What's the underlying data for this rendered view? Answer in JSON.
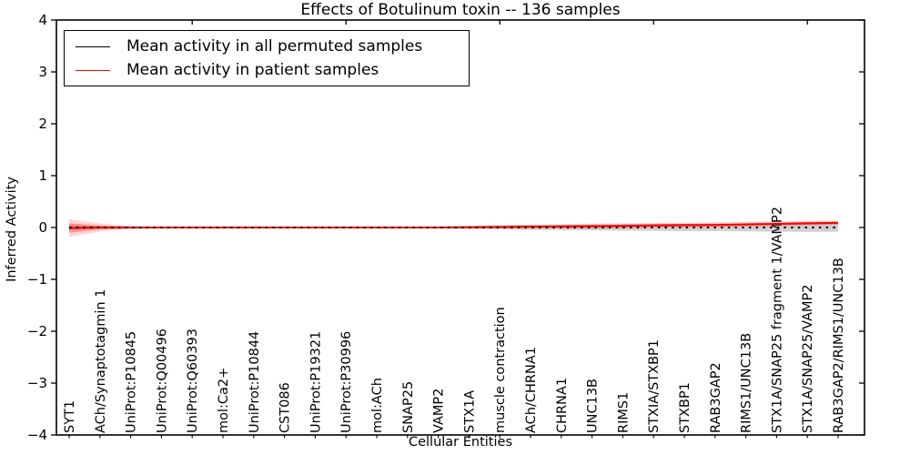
{
  "chart_data": {
    "type": "line",
    "title": "Effects of Botulinum toxin -- 136 samples",
    "xlabel": "Cellular Entities",
    "ylabel": "Inferred Activity",
    "ylim": [
      -4,
      4
    ],
    "yticks": [
      4,
      3,
      2,
      1,
      0,
      -1,
      -2,
      -3,
      -4
    ],
    "grid": false,
    "legend_position": "upper left",
    "categories": [
      "SYT1",
      "ACh/Synaptotagmin 1",
      "UniProt:P10845",
      "UniProt:Q00496",
      "UniProt:Q60393",
      "mol:Ca2+",
      "UniProt:P10844",
      "CST086",
      "UniProt:P19321",
      "UniProt:P30996",
      "mol:ACh",
      "SNAP25",
      "VAMP2",
      "STX1A",
      "muscle contraction",
      "ACh/CHRNA1",
      "CHRNA1",
      "UNC13B",
      "RIMS1",
      "STXIA/STXBP1",
      "STXBP1",
      "RAB3GAP2",
      "RIMS1/UNC13B",
      "STX1A/SNAP25 fragment 1/VAMP2",
      "STX1A/SNAP25/VAMP2",
      "RAB3GAP2/RIMS1/UNC13B"
    ],
    "series": [
      {
        "name": "Mean activity in all permuted samples",
        "color": "#000000",
        "linestyle": "dotted",
        "values": [
          0,
          0,
          0,
          0,
          0,
          0,
          0,
          0,
          0,
          0,
          0,
          0,
          0,
          0,
          0,
          0,
          0,
          0,
          0,
          0,
          0,
          0,
          0,
          0,
          0,
          0
        ],
        "band_halfwidth": [
          0.05,
          0.025,
          0.02,
          0.02,
          0.02,
          0.02,
          0.02,
          0.02,
          0.02,
          0.02,
          0.02,
          0.02,
          0.02,
          0.025,
          0.035,
          0.045,
          0.05,
          0.055,
          0.06,
          0.065,
          0.07,
          0.07,
          0.075,
          0.08,
          0.085,
          0.08
        ],
        "band_color": "rgba(0,0,0,0.18)"
      },
      {
        "name": "Mean activity in patient samples",
        "color": "#ff0000",
        "linestyle": "solid",
        "values": [
          -0.01,
          0,
          0,
          0,
          0,
          0,
          0,
          0,
          0,
          0,
          0,
          0,
          0,
          0.005,
          0.01,
          0.015,
          0.02,
          0.025,
          0.03,
          0.04,
          0.045,
          0.05,
          0.06,
          0.07,
          0.08,
          0.09
        ],
        "band_outer_halfwidth": [
          0.17,
          0.08,
          0.03,
          0.02,
          0.02,
          0.02,
          0.02,
          0.02,
          0.02,
          0.02,
          0.02,
          0.02,
          0.02,
          0.025,
          0.035,
          0.04,
          0.045,
          0.05,
          0.05,
          0.05,
          0.05,
          0.05,
          0.05,
          0.05,
          0.05,
          0.045
        ],
        "band_inner_halfwidth": [
          0.09,
          0.04,
          0.015,
          0.01,
          0.01,
          0.01,
          0.01,
          0.01,
          0.01,
          0.01,
          0.01,
          0.01,
          0.01,
          0.012,
          0.017,
          0.02,
          0.022,
          0.025,
          0.025,
          0.025,
          0.025,
          0.025,
          0.025,
          0.025,
          0.025,
          0.022
        ],
        "band_outer_color": "rgba(255,0,0,0.16)",
        "band_inner_color": "rgba(255,0,0,0.30)"
      }
    ]
  }
}
